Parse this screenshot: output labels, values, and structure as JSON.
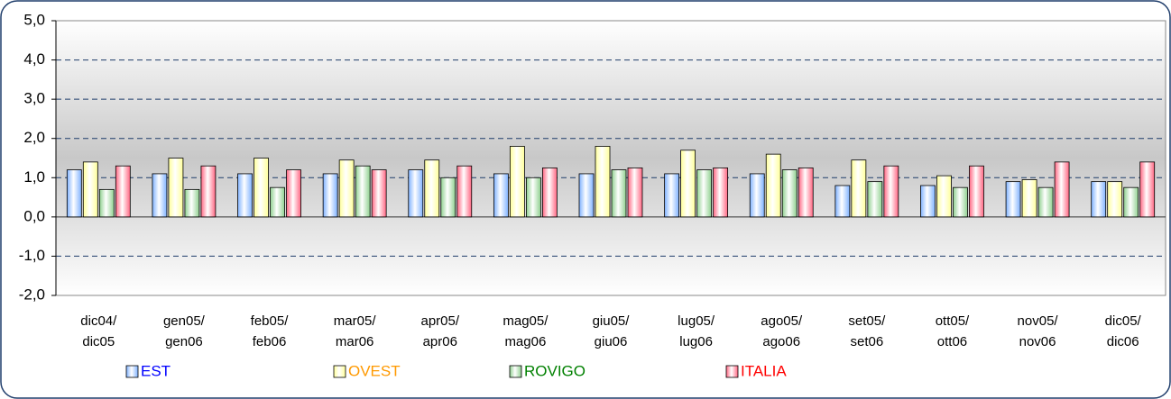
{
  "chart_data": {
    "type": "bar",
    "categories": [
      [
        "dic04/",
        "dic05"
      ],
      [
        "gen05/",
        "gen06"
      ],
      [
        "feb05/",
        "feb06"
      ],
      [
        "mar05/",
        "mar06"
      ],
      [
        "apr05/",
        "apr06"
      ],
      [
        "mag05/",
        "mag06"
      ],
      [
        "giu05/",
        "giu06"
      ],
      [
        "lug05/",
        "lug06"
      ],
      [
        "ago05/",
        "ago06"
      ],
      [
        "set05/",
        "set06"
      ],
      [
        "ott05/",
        "ott06"
      ],
      [
        "nov05/",
        "nov06"
      ],
      [
        "dic05/",
        "dic06"
      ]
    ],
    "series": [
      {
        "name": "EST",
        "color": "#7fb2ff",
        "label_color": "#0000ff",
        "values": [
          1.2,
          1.1,
          1.1,
          1.1,
          1.2,
          1.1,
          1.1,
          1.1,
          1.1,
          0.8,
          0.8,
          0.9,
          0.9
        ]
      },
      {
        "name": "OVEST",
        "color": "#ffff99",
        "label_color": "#ff9900",
        "values": [
          1.4,
          1.5,
          1.5,
          1.45,
          1.45,
          1.8,
          1.8,
          1.7,
          1.6,
          1.45,
          1.05,
          0.95,
          0.9
        ]
      },
      {
        "name": "ROVIGO",
        "color": "#8fd08f",
        "label_color": "#008000",
        "values": [
          0.7,
          0.7,
          0.75,
          1.3,
          1.0,
          1.0,
          1.2,
          1.2,
          1.2,
          0.9,
          0.75,
          0.75,
          0.75
        ]
      },
      {
        "name": "ITALIA",
        "color": "#ff6682",
        "label_color": "#ff0000",
        "values": [
          1.3,
          1.3,
          1.2,
          1.2,
          1.3,
          1.25,
          1.25,
          1.25,
          1.25,
          1.3,
          1.3,
          1.4,
          1.4
        ]
      }
    ],
    "ylim": [
      -2,
      5
    ],
    "yticks": [
      {
        "value": -2,
        "label": "-2,0"
      },
      {
        "value": -1,
        "label": "-1,0"
      },
      {
        "value": 0,
        "label": "0,0"
      },
      {
        "value": 1,
        "label": "1,0"
      },
      {
        "value": 2,
        "label": "2,0"
      },
      {
        "value": 3,
        "label": "3,0"
      },
      {
        "value": 4,
        "label": "4,0"
      },
      {
        "value": 5,
        "label": "5,0"
      }
    ],
    "grid": true
  }
}
